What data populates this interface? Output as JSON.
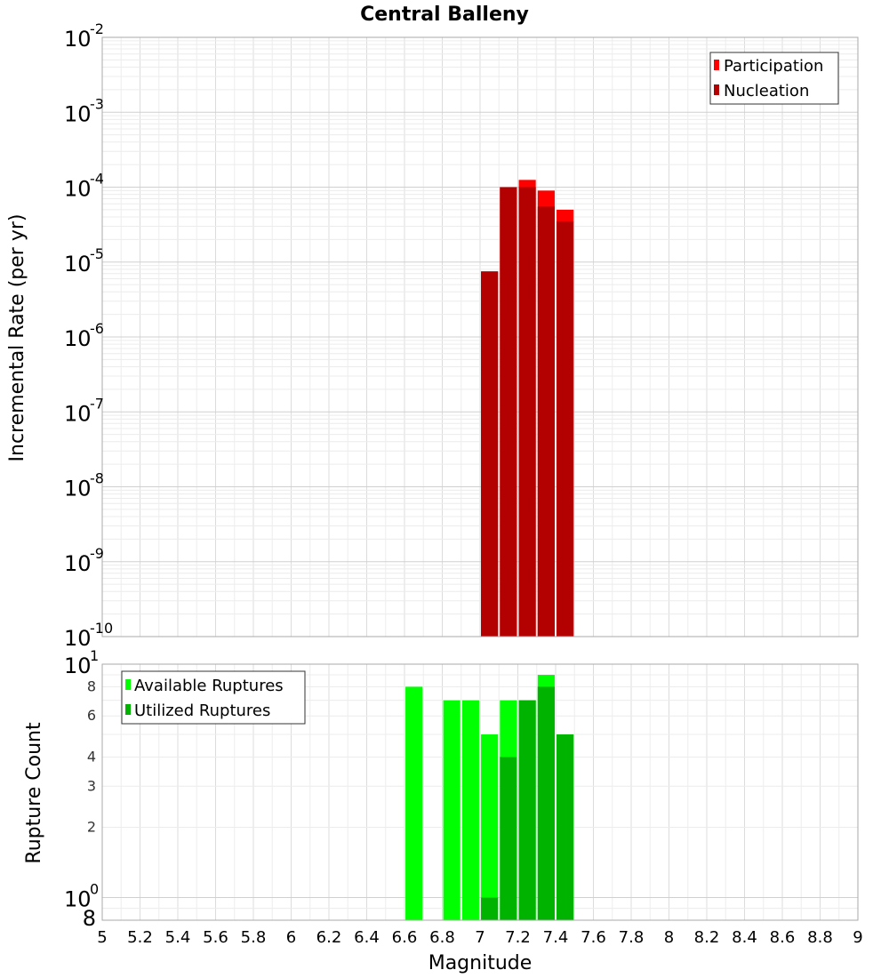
{
  "chart_data": [
    {
      "type": "bar",
      "title": "Central Balleny",
      "xlabel": "",
      "ylabel": "Incremental Rate (per yr)",
      "yscale": "log",
      "ylim": [
        1e-10,
        0.01
      ],
      "xlim": [
        5,
        9
      ],
      "grid": true,
      "legend_position": "top-right",
      "x": [
        7.05,
        7.15,
        7.25,
        7.35,
        7.45
      ],
      "series": [
        {
          "name": "Participation",
          "color": "#ff0000",
          "values": [
            7.5e-06,
            0.0001,
            0.000125,
            9e-05,
            5e-05
          ]
        },
        {
          "name": "Nucleation",
          "color": "#b30000",
          "values": [
            7.5e-06,
            0.0001,
            0.0001,
            5.5e-05,
            3.5e-05
          ]
        }
      ],
      "y_major_exponents": [
        "-10",
        "-9",
        "-8",
        "-7",
        "-6",
        "-5",
        "-4",
        "-3",
        "-2"
      ]
    },
    {
      "type": "bar",
      "title": "",
      "xlabel": "Magnitude",
      "ylabel": "Rupture Count",
      "yscale": "log",
      "ylim": [
        0.8,
        10
      ],
      "xlim": [
        5,
        9
      ],
      "grid": true,
      "legend_position": "top-left",
      "x": [
        6.65,
        6.85,
        6.95,
        7.05,
        7.15,
        7.25,
        7.35,
        7.45
      ],
      "series": [
        {
          "name": "Available Ruptures",
          "color": "#00ff00",
          "values": [
            8,
            7,
            7,
            5,
            7,
            7,
            9,
            5
          ]
        },
        {
          "name": "Utilized Ruptures",
          "color": "#00b300",
          "values": [
            0,
            0,
            0,
            1,
            4,
            7,
            8,
            5
          ]
        }
      ],
      "y_major_ticks": [
        {
          "base": "10",
          "exp": "0",
          "value": 1
        },
        {
          "base": "10",
          "exp": "1",
          "value": 10
        }
      ],
      "y_minor_labels": [
        "8",
        "2",
        "3",
        "4",
        "6",
        "8"
      ],
      "x_tick_labels": [
        "5",
        "5.2",
        "5.4",
        "5.6",
        "5.8",
        "6",
        "6.2",
        "6.4",
        "6.6",
        "6.8",
        "7",
        "7.2",
        "7.4",
        "7.6",
        "7.8",
        "8",
        "8.2",
        "8.4",
        "8.6",
        "8.8",
        "9"
      ]
    }
  ]
}
